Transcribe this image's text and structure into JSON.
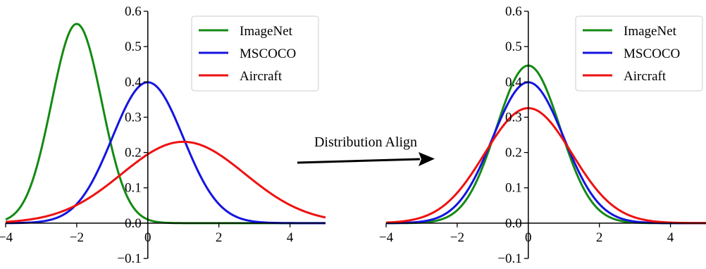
{
  "annotation": "Distribution Align",
  "colors": {
    "ImageNet": "#138a13",
    "MSCOCO": "#1414e0",
    "Aircraft": "#ee1111",
    "axis": "#000000"
  },
  "chart_data": [
    {
      "type": "line",
      "xlim": [
        -4,
        5
      ],
      "ylim": [
        -0.1,
        0.6
      ],
      "xticks": [
        -4,
        -2,
        0,
        2,
        4
      ],
      "yticks": [
        -0.1,
        0.0,
        0.1,
        0.2,
        0.3,
        0.4,
        0.5,
        0.6
      ],
      "xtick_labels": [
        "−4",
        "−2",
        "0",
        "2",
        "4"
      ],
      "ytick_labels": [
        "−0.1",
        "0.0",
        "0.1",
        "0.2",
        "0.3",
        "0.4",
        "0.5",
        "0.6"
      ],
      "legend": "top-right",
      "grid": false,
      "series": [
        {
          "name": "ImageNet",
          "distribution": "normal",
          "mean": -2.0,
          "std": 0.707,
          "peak": 0.564,
          "x_range": [
            -4,
            5
          ]
        },
        {
          "name": "MSCOCO",
          "distribution": "normal",
          "mean": 0.0,
          "std": 1.0,
          "peak": 0.399,
          "x_range": [
            -4,
            5
          ]
        },
        {
          "name": "Aircraft",
          "distribution": "normal",
          "mean": 1.0,
          "std": 1.732,
          "peak": 0.23,
          "x_range": [
            -4,
            5
          ]
        }
      ]
    },
    {
      "type": "line",
      "xlim": [
        -4,
        5
      ],
      "ylim": [
        -0.1,
        0.6
      ],
      "xticks": [
        -4,
        -2,
        0,
        2,
        4
      ],
      "yticks": [
        -0.1,
        0.0,
        0.1,
        0.2,
        0.3,
        0.4,
        0.5,
        0.6
      ],
      "xtick_labels": [
        "−4",
        "−2",
        "0",
        "2",
        "4"
      ],
      "ytick_labels": [
        "−0.1",
        "0.0",
        "0.1",
        "0.2",
        "0.3",
        "0.4",
        "0.5",
        "0.6"
      ],
      "legend": "top-right",
      "grid": false,
      "series": [
        {
          "name": "ImageNet",
          "distribution": "normal",
          "mean": 0.0,
          "std": 0.894,
          "peak": 0.446,
          "x_range": [
            -4,
            5
          ]
        },
        {
          "name": "MSCOCO",
          "distribution": "normal",
          "mean": 0.0,
          "std": 1.0,
          "peak": 0.399,
          "x_range": [
            -4,
            5
          ]
        },
        {
          "name": "Aircraft",
          "distribution": "normal",
          "mean": 0.0,
          "std": 1.225,
          "peak": 0.326,
          "x_range": [
            -4,
            5
          ]
        }
      ]
    }
  ]
}
